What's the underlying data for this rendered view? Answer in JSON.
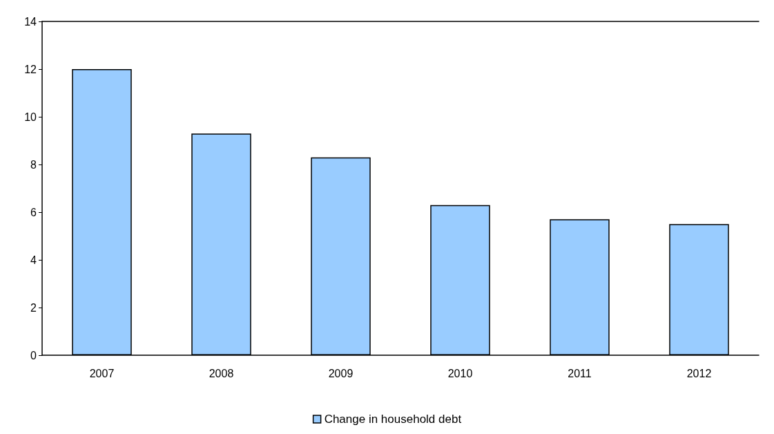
{
  "chart_data": {
    "type": "bar",
    "categories": [
      "2007",
      "2008",
      "2009",
      "2010",
      "2011",
      "2012"
    ],
    "series": [
      {
        "name": "Change in household debt",
        "color": "#99ccff",
        "values": [
          12.0,
          9.3,
          8.3,
          6.3,
          5.7,
          5.5
        ]
      }
    ],
    "ylim": [
      0,
      14
    ],
    "yticks": [
      0,
      2,
      4,
      6,
      8,
      10,
      12,
      14
    ],
    "grid": false,
    "legend": "bottom"
  }
}
